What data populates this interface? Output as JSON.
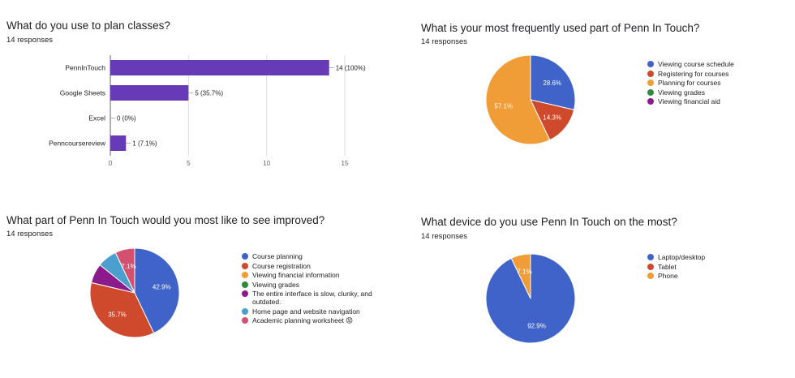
{
  "colors": {
    "purple_bar": "#673ab7"
  },
  "panels": [
    {
      "title": "What do you use to plan classes?",
      "responses": "14 responses"
    },
    {
      "title": "What is your most frequently used part of Penn In Touch?",
      "responses": "14 responses"
    },
    {
      "title": "What part of Penn In Touch would you most like to see improved?",
      "responses": "14 responses"
    },
    {
      "title": "What device do you use Penn In Touch on the most?",
      "responses": "14 responses"
    }
  ],
  "chart_data": [
    {
      "type": "bar",
      "orientation": "horizontal",
      "title": "What do you use to plan classes?",
      "categories": [
        "PennInTouch",
        "Google Sheets",
        "Excel",
        "Penncoursereview"
      ],
      "values": [
        14,
        5,
        0,
        1
      ],
      "value_labels": [
        "14 (100%)",
        "5 (35.7%)",
        "0 (0%)",
        "1 (7.1%)"
      ],
      "xlim": [
        0,
        15
      ],
      "xticks": [
        "0",
        "5",
        "10",
        "15"
      ],
      "grid": true,
      "color": "#673ab7"
    },
    {
      "type": "pie",
      "title": "What is your most frequently used part of Penn In Touch?",
      "legend_position": "right",
      "slices": [
        {
          "label": "Viewing course schedule",
          "value": 28.6,
          "display": "28.6%",
          "color": "#3f63c8"
        },
        {
          "label": "Registering for courses",
          "value": 14.3,
          "display": "14.3%",
          "color": "#cf4a2c"
        },
        {
          "label": "Planning for courses",
          "value": 57.1,
          "display": "57.1%",
          "color": "#f09d38"
        },
        {
          "label": "Viewing grades",
          "value": 0,
          "display": "",
          "color": "#2e8b3e"
        },
        {
          "label": "Viewing financial aid",
          "value": 0,
          "display": "",
          "color": "#8b1a8b"
        }
      ]
    },
    {
      "type": "pie",
      "title": "What part of Penn In Touch would you most like to see improved?",
      "legend_position": "right",
      "slices": [
        {
          "label": "Course planning",
          "value": 42.9,
          "display": "42.9%",
          "color": "#3f63c8"
        },
        {
          "label": "Course registration",
          "value": 35.7,
          "display": "35.7%",
          "color": "#cf4a2c"
        },
        {
          "label": "Viewing financial information",
          "value": 0,
          "display": "",
          "color": "#f09d38"
        },
        {
          "label": "Viewing grades",
          "value": 0,
          "display": "",
          "color": "#2e8b3e"
        },
        {
          "label": "The entire interface is slow, clunky, and outdated.",
          "value": 7.1,
          "display": "",
          "color": "#8b1a8b"
        },
        {
          "label": "Home page and website navigation",
          "value": 7.1,
          "display": "",
          "color": "#4a9fcf"
        },
        {
          "label": "Academic planning worksheet 😡",
          "value": 7.1,
          "display": "7.1%",
          "color": "#d4506f"
        }
      ]
    },
    {
      "type": "pie",
      "title": "What device do you use Penn In Touch on the most?",
      "legend_position": "right",
      "slices": [
        {
          "label": "Laptop/desktop",
          "value": 92.9,
          "display": "92.9%",
          "color": "#3f63c8"
        },
        {
          "label": "Tablet",
          "value": 0,
          "display": "",
          "color": "#cf4a2c"
        },
        {
          "label": "Phone",
          "value": 7.1,
          "display": "7.1%",
          "color": "#f09d38"
        }
      ]
    }
  ]
}
